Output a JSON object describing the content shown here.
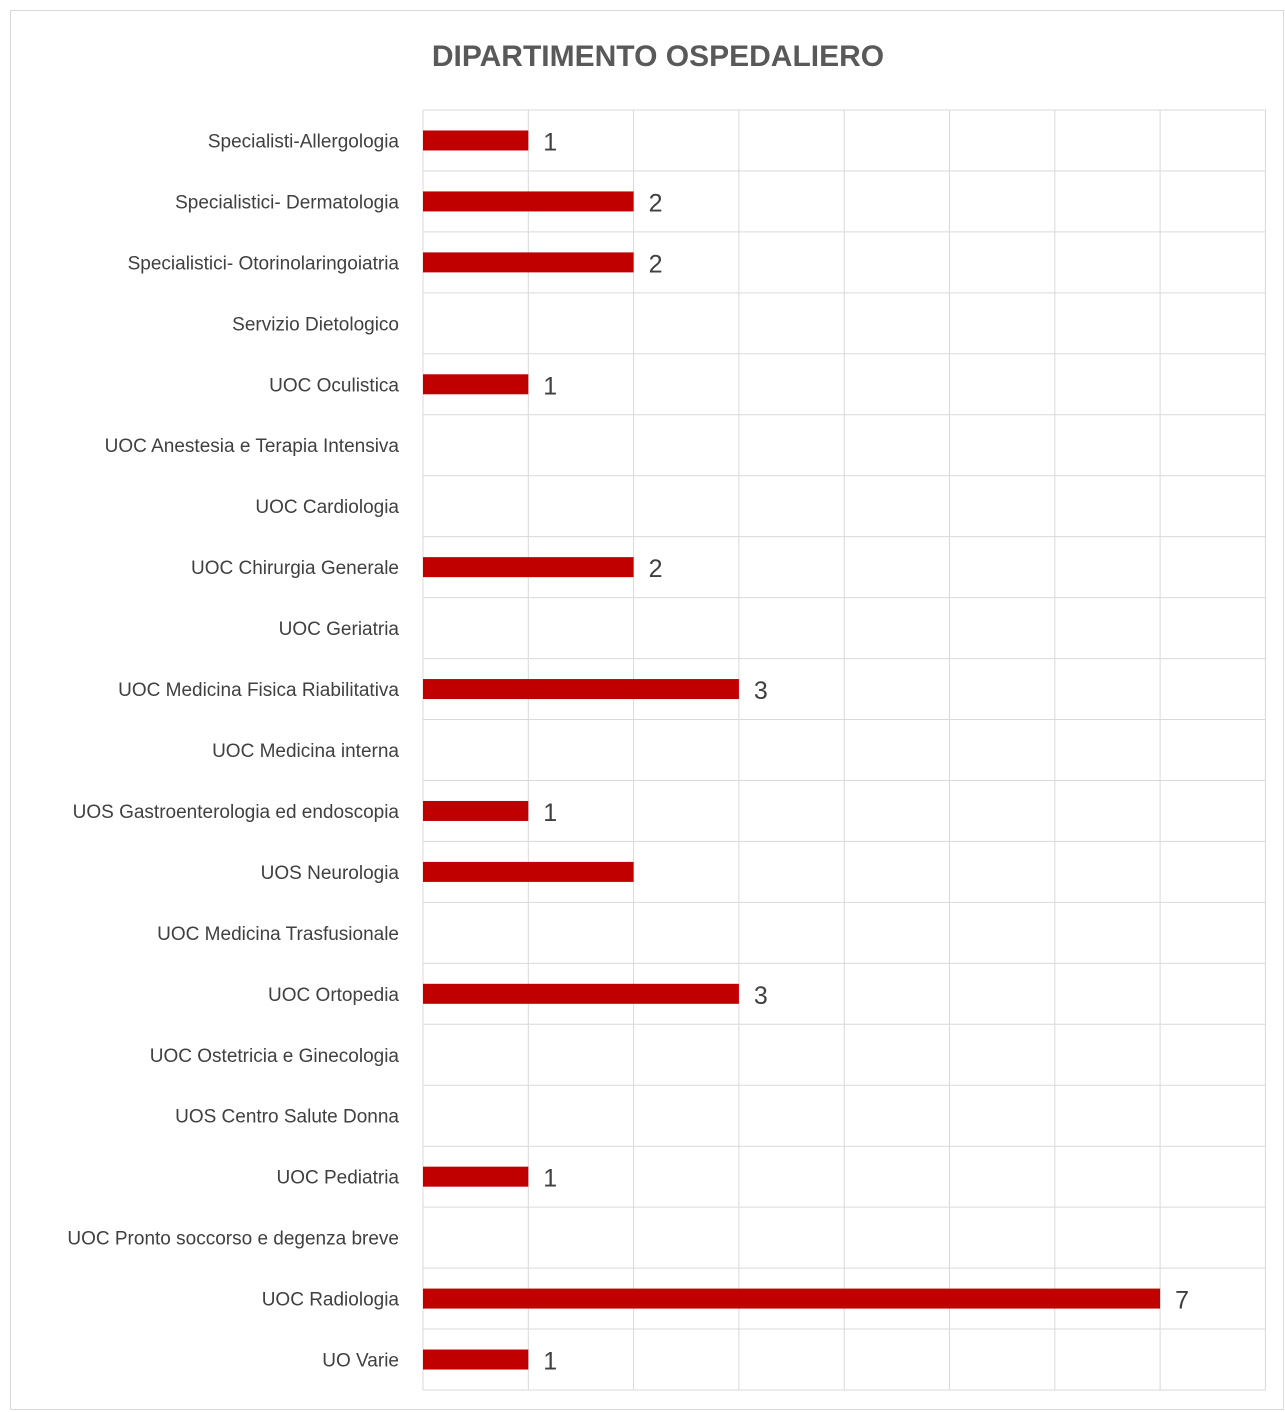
{
  "chart_data": {
    "type": "bar",
    "orientation": "horizontal",
    "title": "DIPARTIMENTO OSPEDALIERO",
    "xlabel": "",
    "ylabel": "",
    "categories": [
      "Specialisti-Allergologia",
      "Specialistici- Dermatologia",
      "Specialistici- Otorinolaringoiatria",
      "Servizio Dietologico",
      "UOC Oculistica",
      "UOC Anestesia e Terapia Intensiva",
      "UOC Cardiologia",
      "UOC Chirurgia Generale",
      "UOC Geriatria",
      "UOC Medicina Fisica Riabilitativa",
      "UOC Medicina interna",
      "UOS Gastroenterologia ed endoscopia",
      "UOS Neurologia",
      "UOC Medicina Trasfusionale",
      "UOC Ortopedia",
      "UOC Ostetricia e Ginecologia",
      "UOS Centro Salute Donna",
      "UOC Pediatria",
      "UOC Pronto soccorso e degenza breve",
      "UOC Radiologia",
      "UO Varie"
    ],
    "values": [
      1,
      2,
      2,
      null,
      1,
      null,
      null,
      2,
      null,
      3,
      null,
      1,
      2,
      null,
      3,
      null,
      null,
      1,
      null,
      7,
      1
    ],
    "data_labels": [
      "1",
      "2",
      "2",
      "",
      "1",
      "",
      "",
      "2",
      "",
      "3",
      "",
      "1",
      "",
      "",
      "3",
      "",
      "",
      "1",
      "",
      "7",
      "1"
    ],
    "xlim": [
      0,
      8
    ],
    "grid": true,
    "legend": "none",
    "bar_color": "#C00000"
  }
}
